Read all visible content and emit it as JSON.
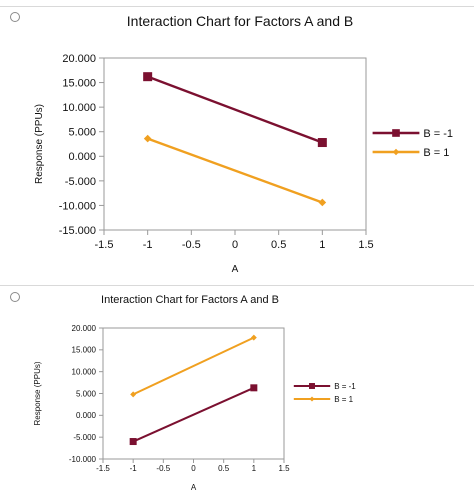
{
  "options": [
    {
      "chart_data": {
        "type": "line",
        "title": "Interaction Chart for Factors A and B",
        "xlabel": "A",
        "ylabel": "Response (PPUs)",
        "xlim": [
          -1.5,
          1.5
        ],
        "ylim": [
          -15,
          20
        ],
        "x_ticks": [
          -1.5,
          -1,
          -0.5,
          0,
          0.5,
          1,
          1.5
        ],
        "x_tick_labels": [
          "-1.5",
          "-1",
          "-0.5",
          "0",
          "0.5",
          "1",
          "1.5"
        ],
        "y_ticks": [
          -15,
          -10,
          -5,
          0,
          5,
          10,
          15,
          20
        ],
        "y_tick_labels": [
          "-15.000",
          "-10.000",
          "-5.000",
          "0.000",
          "5.000",
          "10.000",
          "15.000",
          "20.000"
        ],
        "grid": false,
        "legend_position": "right",
        "series": [
          {
            "name": "B = -1",
            "marker": "square",
            "color": "#7b1030",
            "x": [
              -1,
              1
            ],
            "y": [
              16.2,
              2.8
            ]
          },
          {
            "name": "B = 1",
            "marker": "diamond",
            "color": "#f0a020",
            "x": [
              -1,
              1
            ],
            "y": [
              3.6,
              -9.4
            ]
          }
        ]
      }
    },
    {
      "chart_data": {
        "type": "line",
        "title": "Interaction Chart for Factors A and B",
        "xlabel": "A",
        "ylabel": "Response (PPUs)",
        "xlim": [
          -1.5,
          1.5
        ],
        "ylim": [
          -10,
          20
        ],
        "x_ticks": [
          -1.5,
          -1,
          -0.5,
          0,
          0.5,
          1,
          1.5
        ],
        "x_tick_labels": [
          "-1.5",
          "-1",
          "-0.5",
          "0",
          "0.5",
          "1",
          "1.5"
        ],
        "y_ticks": [
          -10,
          -5,
          0,
          5,
          10,
          15,
          20
        ],
        "y_tick_labels": [
          "-10.000",
          "-5.000",
          "0.000",
          "5.000",
          "10.000",
          "15.000",
          "20.000"
        ],
        "grid": false,
        "legend_position": "right",
        "series": [
          {
            "name": "B = -1",
            "marker": "square",
            "color": "#7b1030",
            "x": [
              -1,
              1
            ],
            "y": [
              -6,
              6.3
            ]
          },
          {
            "name": "B = 1",
            "marker": "diamond",
            "color": "#f0a020",
            "x": [
              -1,
              1
            ],
            "y": [
              4.8,
              17.8
            ]
          }
        ]
      }
    }
  ]
}
